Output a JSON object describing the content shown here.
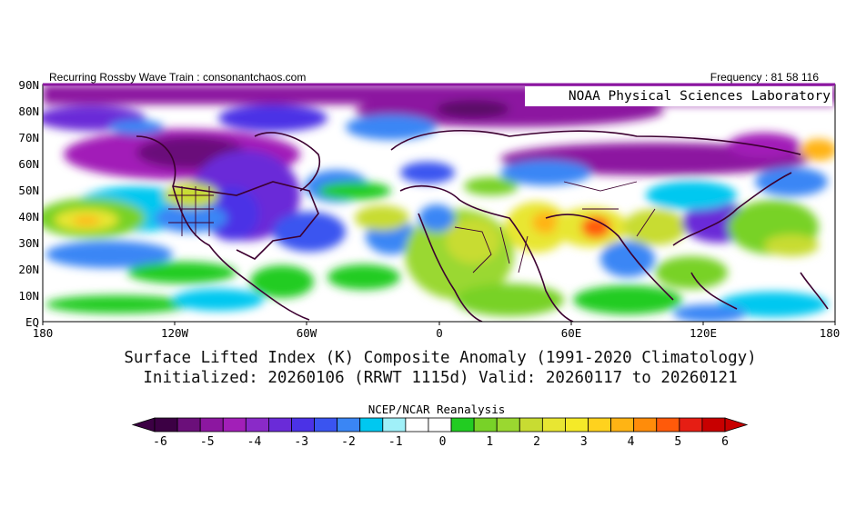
{
  "header": {
    "left_text": "Recurring Rossby Wave Train : consonantchaos.com",
    "right_text": "Frequency : 81 58 116",
    "org_label": "NOAA Physical Sciences Laboratory"
  },
  "map": {
    "lat_labels": [
      "90N",
      "80N",
      "70N",
      "60N",
      "50N",
      "40N",
      "30N",
      "20N",
      "10N",
      "EQ"
    ],
    "lon_labels": [
      "180",
      "120W",
      "60W",
      "0",
      "60E",
      "120E",
      "180"
    ]
  },
  "title": {
    "line1": "Surface Lifted Index (K) Composite Anomaly (1991-2020 Climatology)",
    "line2": "Initialized: 20260106 (RRWT 1115d) Valid: 20260117 to 20260121"
  },
  "colorbar": {
    "title": "NCEP/NCAR Reanalysis",
    "labels": [
      "-6",
      "-5",
      "-4",
      "-3",
      "-2",
      "-1",
      "0",
      "1",
      "2",
      "3",
      "4",
      "5",
      "6"
    ],
    "colors": [
      "#3c0044",
      "#6b0f7a",
      "#8c17a0",
      "#a21fb8",
      "#8a2ac8",
      "#6a2bd8",
      "#4b32e6",
      "#3a54f0",
      "#3a86f5",
      "#00c8f0",
      "#a0f0f8",
      "#ffffff",
      "#ffffff",
      "#22cc22",
      "#78d228",
      "#9ad830",
      "#c8dc32",
      "#e8e632",
      "#f5ea28",
      "#ffd21e",
      "#ffb414",
      "#ff8c0a",
      "#ff5a0a",
      "#e61e14",
      "#c80000"
    ]
  }
}
